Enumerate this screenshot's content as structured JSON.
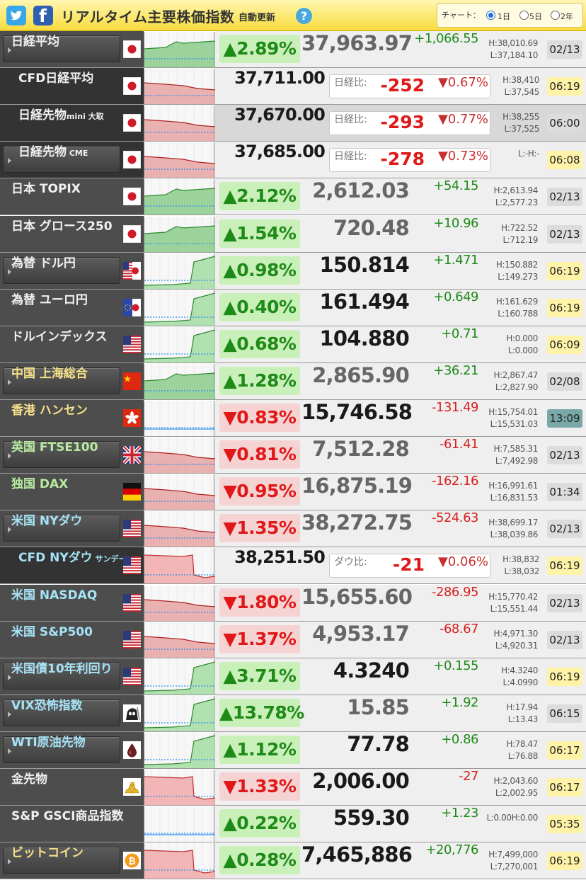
{
  "header": {
    "title": "リアルタイム主要株価指数",
    "auto_update": "自動更新",
    "help": "?",
    "chart_label": "チャート：",
    "options": [
      {
        "label": "1日",
        "selected": true
      },
      {
        "label": "5日",
        "selected": false
      },
      {
        "label": "2年",
        "selected": false
      }
    ]
  },
  "rows": [
    {
      "name": "日経平均",
      "sub": "",
      "name_color": "white",
      "button": true,
      "flag": "jp",
      "chart": "green-flat",
      "type": "index",
      "change_pct": "▲2.89%",
      "dir": "up",
      "price": "37,963.97",
      "price_dim": true,
      "change": "+1,066.55",
      "high": "H:38,010.69",
      "low": "L:37,184.10",
      "time": "02/13",
      "time_color": "gray"
    },
    {
      "name": "CFD日経平均",
      "sub": "",
      "name_color": "white",
      "button": false,
      "dark": true,
      "flag": "jp",
      "chart": "red-flat",
      "type": "cfd",
      "price": "37,711.00",
      "diff_label": "日経比:",
      "diff": "-252",
      "diff_pct": "▼0.67%",
      "high": "H:38,410",
      "low": "L:37,545",
      "time": "06:19",
      "time_color": "yellow"
    },
    {
      "name": "日経先物",
      "sub": "mini 大取",
      "name_color": "white",
      "button": false,
      "dark": true,
      "flag": "jp",
      "chart": "red-flat",
      "type": "cfd",
      "gray": true,
      "price": "37,670.00",
      "diff_label": "日経比:",
      "diff": "-293",
      "diff_pct": "▼0.77%",
      "high": "H:38,255",
      "low": "L:37,525",
      "time": "06:00",
      "time_color": "gray"
    },
    {
      "name": "日経先物",
      "sub": " CME",
      "name_color": "white",
      "button": true,
      "dark": true,
      "flag": "jp",
      "chart": "red-flat",
      "type": "cfd",
      "price": "37,685.00",
      "diff_label": "日経比:",
      "diff": "-278",
      "diff_pct": "▼0.73%",
      "high": "L:-H:-",
      "low": "",
      "time": "06:08",
      "time_color": "yellow"
    },
    {
      "name": "日本 TOPIX",
      "sub": "",
      "name_color": "white",
      "button": false,
      "flag": "jp",
      "chart": "green-flat",
      "type": "index",
      "change_pct": "▲2.12%",
      "dir": "up",
      "price": "2,612.03",
      "price_dim": true,
      "change": "+54.15",
      "high": "H:2,613.94",
      "low": "L:2,577.23",
      "time": "02/13",
      "time_color": "gray"
    },
    {
      "name": "日本 グロース250",
      "sub": "",
      "name_color": "white",
      "button": false,
      "flag": "jp",
      "chart": "green-flat",
      "type": "index",
      "change_pct": "▲1.54%",
      "dir": "up",
      "price": "720.48",
      "price_dim": true,
      "change": "+10.96",
      "high": "H:722.52",
      "low": "L:712.19",
      "time": "02/13",
      "time_color": "gray"
    },
    {
      "name": "為替 ドル円",
      "sub": "",
      "name_color": "white",
      "button": true,
      "flag": "usjp",
      "chart": "green-up",
      "type": "index",
      "change_pct": "▲0.98%",
      "dir": "up",
      "price": "150.814",
      "price_dim": false,
      "change": "+1.471",
      "high": "H:150.882",
      "low": "L:149.273",
      "time": "06:19",
      "time_color": "yellow"
    },
    {
      "name": "為替 ユーロ円",
      "sub": "",
      "name_color": "white",
      "button": false,
      "flag": "eujp",
      "chart": "green-up",
      "type": "index",
      "change_pct": "▲0.40%",
      "dir": "up",
      "price": "161.494",
      "price_dim": false,
      "change": "+0.649",
      "high": "H:161.629",
      "low": "L:160.788",
      "time": "06:19",
      "time_color": "yellow"
    },
    {
      "name": "ドルインデックス",
      "sub": "",
      "name_color": "white",
      "button": false,
      "flag": "us",
      "chart": "green-up",
      "type": "index",
      "change_pct": "▲0.68%",
      "dir": "up",
      "price": "104.880",
      "price_dim": false,
      "change": "+0.71",
      "high": "H:0.000",
      "low": "L:0.000",
      "time": "06:09",
      "time_color": "yellow"
    },
    {
      "name": "中国 上海総合",
      "sub": "",
      "name_color": "yellow",
      "button": true,
      "flag": "cn",
      "chart": "green-flat",
      "type": "index",
      "change_pct": "▲1.28%",
      "dir": "up",
      "price": "2,865.90",
      "price_dim": true,
      "change": "+36.21",
      "high": "H:2,867.47",
      "low": "L:2,827.90",
      "time": "02/08",
      "time_color": "gray"
    },
    {
      "name": "香港 ハンセン",
      "sub": "",
      "name_color": "yellow",
      "button": false,
      "flag": "hk",
      "chart": "flat",
      "type": "index",
      "change_pct": "▼0.83%",
      "dir": "down",
      "price": "15,746.58",
      "price_dim": false,
      "change": "-131.49",
      "high": "H:15,754.01",
      "low": "L:15,531.03",
      "time": "13:09",
      "time_color": "teal"
    },
    {
      "name": "英国 FTSE100",
      "sub": "",
      "name_color": "green",
      "button": true,
      "flag": "uk",
      "chart": "red-flat",
      "type": "index",
      "change_pct": "▼0.81%",
      "dir": "down",
      "price": "7,512.28",
      "price_dim": true,
      "change": "-61.41",
      "high": "H:7,585.31",
      "low": "L:7,492.98",
      "time": "02/13",
      "time_color": "gray"
    },
    {
      "name": "独国 DAX",
      "sub": "",
      "name_color": "green",
      "button": false,
      "flag": "de",
      "chart": "red-flat",
      "type": "index",
      "change_pct": "▼0.95%",
      "dir": "down",
      "price": "16,875.19",
      "price_dim": true,
      "change": "-162.16",
      "high": "H:16,991.61",
      "low": "L:16,831.53",
      "time": "01:34",
      "time_color": "gray"
    },
    {
      "name": "米国 NYダウ",
      "sub": "",
      "name_color": "cyan",
      "button": true,
      "flag": "us",
      "chart": "red-flat",
      "type": "index",
      "change_pct": "▼1.35%",
      "dir": "down",
      "price": "38,272.75",
      "price_dim": true,
      "change": "-524.63",
      "high": "H:38,699.17",
      "low": "L:38,039.86",
      "time": "02/13",
      "time_color": "gray"
    },
    {
      "name": "CFD NYダウ",
      "sub": " サンデー",
      "name_color": "cyan",
      "button": false,
      "dark": true,
      "flag": "us",
      "chart": "green-down",
      "type": "cfd",
      "price": "38,251.50",
      "diff_label": "ダウ比:",
      "diff": "-21",
      "diff_pct": "▼0.06%",
      "high": "H:38,832",
      "low": "L:38,032",
      "time": "06:19",
      "time_color": "yellow"
    },
    {
      "name": "米国 NASDAQ",
      "sub": "",
      "name_color": "cyan",
      "button": false,
      "flag": "us",
      "chart": "red-flat",
      "type": "index",
      "change_pct": "▼1.80%",
      "dir": "down",
      "price": "15,655.60",
      "price_dim": true,
      "change": "-286.95",
      "high": "H:15,770.42",
      "low": "L:15,551.44",
      "time": "02/13",
      "time_color": "gray"
    },
    {
      "name": "米国 S&P500",
      "sub": "",
      "name_color": "cyan",
      "button": false,
      "flag": "us",
      "chart": "red-flat",
      "type": "index",
      "change_pct": "▼1.37%",
      "dir": "down",
      "price": "4,953.17",
      "price_dim": true,
      "change": "-68.67",
      "high": "H:4,971.30",
      "low": "L:4,920.31",
      "time": "02/13",
      "time_color": "gray"
    },
    {
      "name": "米国債10年利回り",
      "sub": "",
      "name_color": "cyan",
      "button": true,
      "flag": "us",
      "chart": "green-up",
      "type": "index",
      "change_pct": "▲3.71%",
      "dir": "up",
      "price": "4.3240",
      "price_dim": false,
      "change": "+0.155",
      "high": "H:4.3240",
      "low": "L:4.0990",
      "time": "06:19",
      "time_color": "yellow"
    },
    {
      "name": "VIX恐怖指数",
      "sub": "",
      "name_color": "cyan",
      "button": true,
      "flag": "vix",
      "chart": "green-up",
      "type": "index",
      "change_pct": "▲13.78%",
      "dir": "up",
      "price": "15.85",
      "price_dim": true,
      "change": "+1.92",
      "high": "H:17.94",
      "low": "L:13.43",
      "time": "06:15",
      "time_color": "gray"
    },
    {
      "name": "WTI原油先物",
      "sub": "",
      "name_color": "cyan",
      "button": true,
      "flag": "oil",
      "chart": "green-up",
      "type": "index",
      "change_pct": "▲1.12%",
      "dir": "up",
      "price": "77.78",
      "price_dim": false,
      "change": "+0.86",
      "high": "H:78.47",
      "low": "L:76.88",
      "time": "06:17",
      "time_color": "yellow"
    },
    {
      "name": "金先物",
      "sub": "",
      "name_color": "white",
      "button": false,
      "flag": "gold",
      "chart": "green-down",
      "type": "index",
      "change_pct": "▼1.33%",
      "dir": "down",
      "price": "2,006.00",
      "price_dim": false,
      "change": "-27",
      "high": "H:2,043.60",
      "low": "L:2,002.95",
      "time": "06:17",
      "time_color": "yellow"
    },
    {
      "name": "S&P GSCI商品指数",
      "sub": "",
      "name_color": "white",
      "button": false,
      "flag": "none",
      "chart": "flat",
      "type": "index",
      "change_pct": "▲0.22%",
      "dir": "up",
      "price": "559.30",
      "price_dim": false,
      "change": "+1.23",
      "high": "L:0.00H:0.00",
      "low": "",
      "time": "05:35",
      "time_color": "yellow"
    },
    {
      "name": "ビットコイン",
      "sub": "",
      "name_color": "yellow",
      "button": true,
      "flag": "btc",
      "chart": "green-down",
      "type": "index",
      "change_pct": "▲0.28%",
      "dir": "up",
      "price": "7,465,886",
      "price_dim": false,
      "change": "+20,776",
      "high": "H:7,499,000",
      "low": "L:7,270,001",
      "time": "06:19",
      "time_color": "yellow"
    }
  ]
}
